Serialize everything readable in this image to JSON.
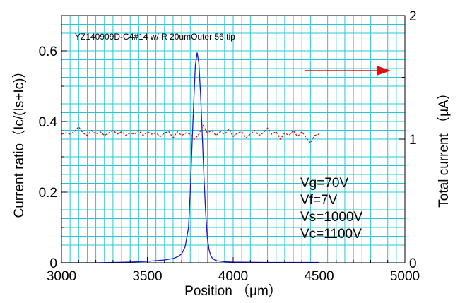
{
  "chart_data": {
    "type": "line",
    "xlabel": "Position （μm）",
    "ylabel_left": "Current  ratio（Ic/(Is+Ic)）",
    "ylabel_right": "Total current （μA）",
    "xlim": [
      3000,
      5000
    ],
    "ylim_left": [
      0,
      0.7
    ],
    "ylim_right": [
      0,
      2
    ],
    "x_ticks": [
      "3000",
      "3500",
      "4000",
      "4500",
      "5000"
    ],
    "y_left_ticks": [
      {
        "v": 0,
        "label": "0"
      },
      {
        "v": 0.2,
        "label": "0.2"
      },
      {
        "v": 0.4,
        "label": "0.4"
      },
      {
        "v": 0.6,
        "label": "0.6"
      }
    ],
    "y_right_ticks": [
      {
        "v": 0,
        "label": "0"
      },
      {
        "v": 1,
        "label": "1"
      },
      {
        "v": 2,
        "label": "2"
      }
    ],
    "grid": true,
    "annotation": "YZ140909D-C4#14 w/ R 20umOuter 56 tip",
    "conditions": [
      "Vg=70V",
      "Vf=7V",
      "Vs=1000V",
      "Vc=1100V"
    ],
    "arrow_direction": "right",
    "series": [
      {
        "axis": "left",
        "color": "#1a1acc",
        "style": "solid",
        "x": [
          3000,
          3200,
          3400,
          3500,
          3600,
          3650,
          3680,
          3700,
          3720,
          3740,
          3750,
          3760,
          3770,
          3780,
          3790,
          3800,
          3810,
          3820,
          3830,
          3840,
          3850,
          3860,
          3870,
          3880,
          3900,
          3950,
          4000,
          4200,
          4500
        ],
        "y": [
          0.0,
          0.0,
          0.002,
          0.004,
          0.008,
          0.012,
          0.018,
          0.025,
          0.045,
          0.1,
          0.2,
          0.33,
          0.45,
          0.56,
          0.595,
          0.565,
          0.48,
          0.36,
          0.24,
          0.14,
          0.07,
          0.035,
          0.02,
          0.012,
          0.006,
          0.003,
          0.002,
          0.001,
          0.001
        ]
      },
      {
        "axis": "right",
        "color": "#dd1111",
        "style": "dashed",
        "x": [
          3000,
          3025,
          3050,
          3075,
          3100,
          3125,
          3150,
          3175,
          3200,
          3225,
          3250,
          3275,
          3300,
          3325,
          3350,
          3375,
          3400,
          3425,
          3450,
          3475,
          3500,
          3525,
          3550,
          3575,
          3600,
          3625,
          3650,
          3675,
          3700,
          3725,
          3750,
          3775,
          3800,
          3825,
          3850,
          3875,
          3900,
          3925,
          3950,
          3975,
          4000,
          4025,
          4050,
          4075,
          4100,
          4125,
          4150,
          4175,
          4200,
          4225,
          4250,
          4275,
          4300,
          4325,
          4350,
          4375,
          4400,
          4425,
          4450,
          4475,
          4500
        ],
        "y": [
          1.04,
          1.05,
          1.04,
          1.06,
          1.1,
          1.05,
          1.03,
          1.07,
          1.04,
          1.06,
          1.03,
          1.05,
          1.07,
          1.04,
          1.06,
          1.03,
          1.05,
          1.04,
          1.07,
          1.03,
          1.06,
          1.04,
          1.05,
          1.02,
          1.05,
          1.06,
          1.01,
          1.06,
          1.03,
          1.05,
          1.04,
          1.0,
          1.04,
          1.11,
          1.05,
          1.07,
          1.03,
          1.06,
          1.04,
          1.08,
          1.02,
          1.05,
          1.06,
          1.01,
          1.04,
          1.07,
          1.03,
          1.05,
          1.09,
          1.04,
          1.06,
          1.0,
          1.05,
          1.03,
          1.07,
          1.02,
          1.06,
          1.01,
          0.97,
          1.03,
          1.04
        ]
      }
    ]
  }
}
